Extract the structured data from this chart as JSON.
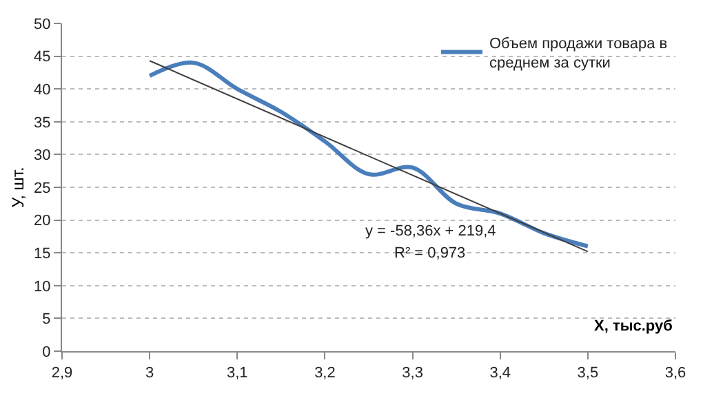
{
  "chart_data": {
    "type": "line",
    "xlabel": "X, тыс.руб",
    "ylabel": "У, шт.",
    "series": [
      {
        "name": "Объем продажи товара в среднем за сутки",
        "color": "#4a7ebb",
        "x": [
          3.0,
          3.05,
          3.1,
          3.15,
          3.2,
          3.25,
          3.3,
          3.35,
          3.4,
          3.45,
          3.5
        ],
        "values": [
          42,
          44,
          40,
          36.5,
          32,
          27,
          28,
          22.5,
          21,
          18,
          16
        ]
      },
      {
        "type": "line",
        "color": "#404040",
        "x": [
          3.0,
          3.5
        ],
        "values": [
          44.3,
          15.2
        ]
      }
    ],
    "annotations": [
      "y = -58,36x + 219,4",
      "R² = 0,973"
    ],
    "xlim": [
      2.9,
      3.6
    ],
    "xticks": [
      {
        "value": 2.9,
        "label": "2,9"
      },
      3,
      {
        "value": 3.1,
        "label": "3,1"
      },
      {
        "value": 3.2,
        "label": "3,2"
      },
      {
        "value": 3.3,
        "label": "3,3"
      },
      {
        "value": 3.4,
        "label": "3,4"
      },
      {
        "value": 3.5,
        "label": "3,5"
      },
      {
        "value": 3.6,
        "label": "3,6"
      }
    ],
    "ylim": [
      0,
      50
    ],
    "yticks": [
      0,
      5,
      10,
      15,
      20,
      25,
      30,
      35,
      40,
      45,
      50
    ],
    "grid": "y",
    "legend": "top right",
    "marker": "none",
    "line_style": "solid"
  }
}
